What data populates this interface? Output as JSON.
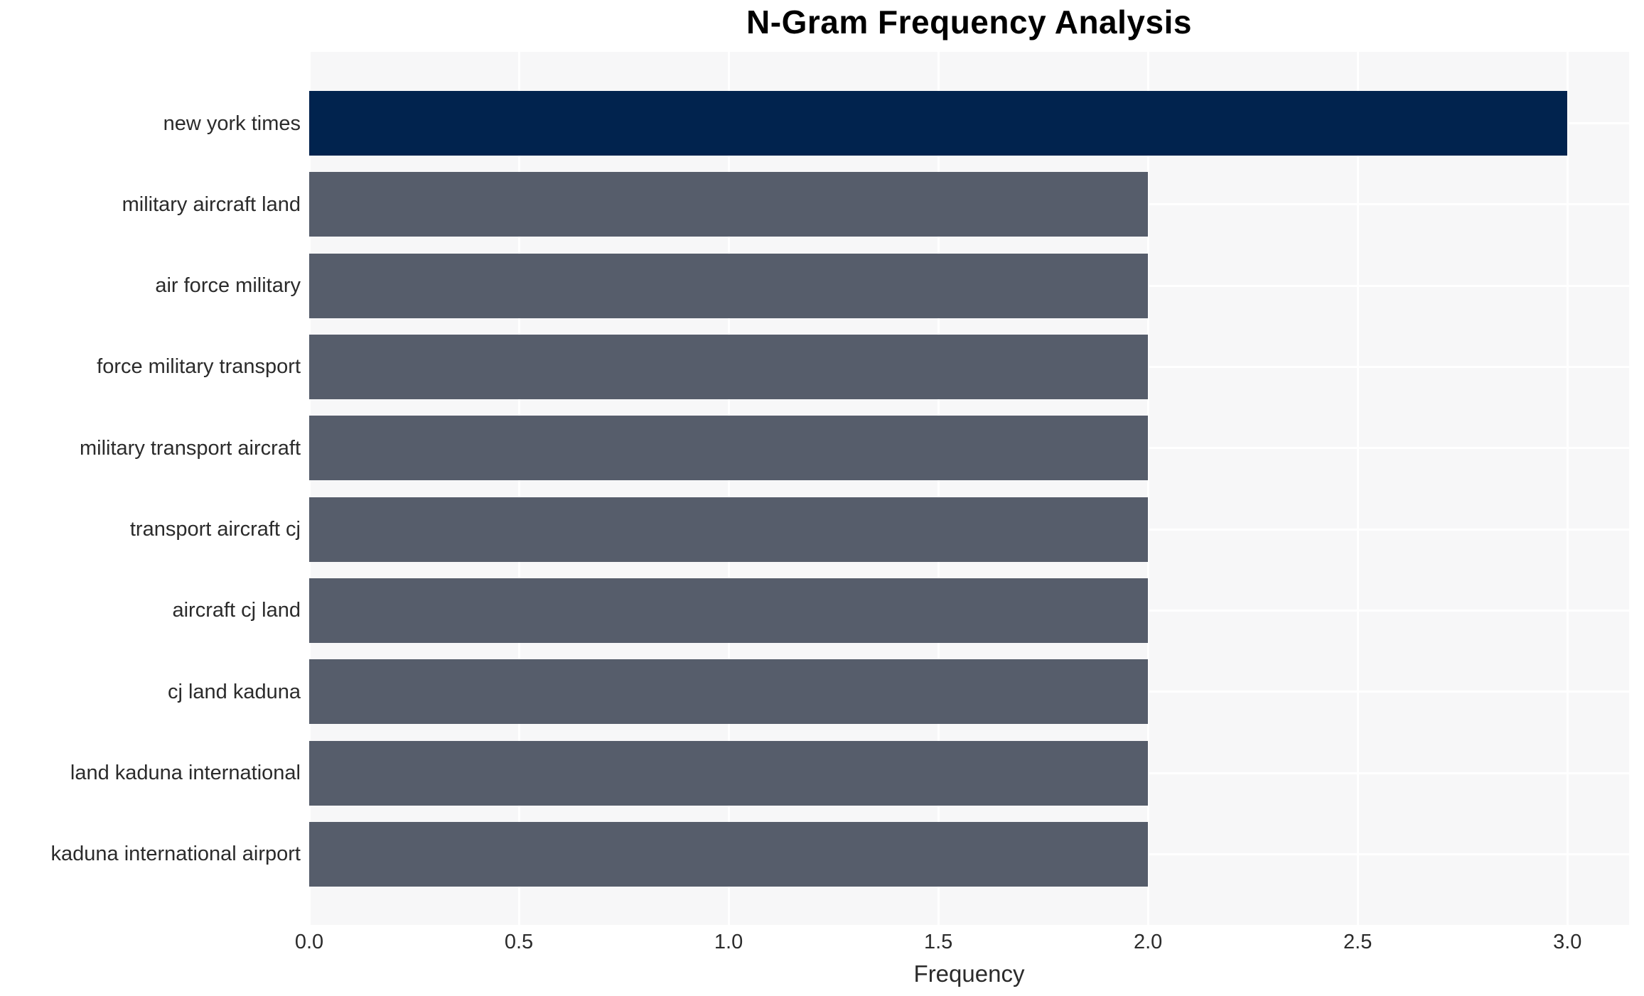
{
  "chart_data": {
    "type": "bar",
    "orientation": "horizontal",
    "title": "N-Gram Frequency Analysis",
    "xlabel": "Frequency",
    "ylabel": "",
    "categories": [
      "new york times",
      "military aircraft land",
      "air force military",
      "force military transport",
      "military transport aircraft",
      "transport aircraft cj",
      "aircraft cj land",
      "cj land kaduna",
      "land kaduna international",
      "kaduna international airport"
    ],
    "values": [
      3,
      2,
      2,
      2,
      2,
      2,
      2,
      2,
      2,
      2
    ],
    "bar_colors": [
      "#01234e",
      "#565d6b",
      "#565d6b",
      "#565d6b",
      "#565d6b",
      "#565d6b",
      "#565d6b",
      "#565d6b",
      "#565d6b",
      "#565d6b"
    ],
    "xticks": [
      "0.0",
      "0.5",
      "1.0",
      "1.5",
      "2.0",
      "2.5",
      "3.0"
    ],
    "xtick_values": [
      0,
      0.5,
      1,
      1.5,
      2,
      2.5,
      3
    ],
    "xlim": [
      0,
      3.147
    ],
    "grid": true,
    "legend_position": "none",
    "colors": {
      "highlight_bar": "#01234e",
      "default_bar": "#565d6b",
      "panel_background": "#f7f7f8",
      "gridline": "#ffffff",
      "tick_text": "#2b2b2b",
      "title_text": "#000000"
    }
  }
}
